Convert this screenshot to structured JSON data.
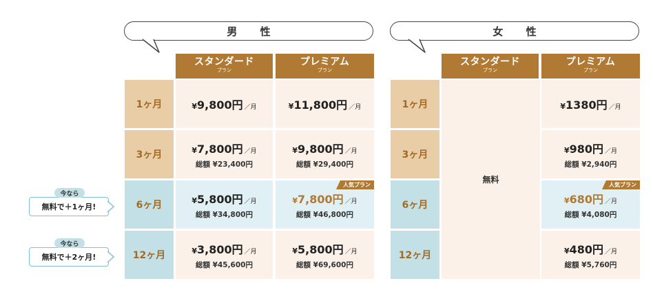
{
  "male": {
    "title": "男 性",
    "plans": [
      {
        "main": "スタンダード",
        "sub": "プラン"
      },
      {
        "main": "プレミアム",
        "sub": "プラン"
      }
    ],
    "rows": [
      {
        "duration": "1ヶ月",
        "std": {
          "yen": "¥",
          "amount": "9,800円",
          "unit": "／月",
          "total": ""
        },
        "prem": {
          "yen": "¥",
          "amount": "11,800円",
          "unit": "／月",
          "total": ""
        }
      },
      {
        "duration": "3ヶ月",
        "std": {
          "yen": "¥",
          "amount": "7,800円",
          "unit": "／月",
          "total": "総額 ¥23,400円"
        },
        "prem": {
          "yen": "¥",
          "amount": "9,800円",
          "unit": "／月",
          "total": "総額 ¥29,400円"
        }
      },
      {
        "duration": "6ヶ月",
        "std": {
          "yen": "¥",
          "amount": "5,800円",
          "unit": "／月",
          "total": "総額 ¥34,800円"
        },
        "prem": {
          "yen": "¥",
          "amount": "7,800円",
          "unit": "／月",
          "total": "総額 ¥46,800円",
          "badge": "人気プラン"
        }
      },
      {
        "duration": "12ヶ月",
        "std": {
          "yen": "¥",
          "amount": "3,800円",
          "unit": "／月",
          "total": "総額 ¥45,600円"
        },
        "prem": {
          "yen": "¥",
          "amount": "5,800円",
          "unit": "／月",
          "total": "総額 ¥69,600円"
        }
      }
    ]
  },
  "female": {
    "title": "女 性",
    "plans": [
      {
        "main": "スタンダード",
        "sub": "プラン"
      },
      {
        "main": "プレミアム",
        "sub": "プラン"
      }
    ],
    "durations": [
      "1ヶ月",
      "3ヶ月",
      "6ヶ月",
      "12ヶ月"
    ],
    "std_free": "無料",
    "prem": [
      {
        "yen": "¥",
        "amount": "1380円",
        "unit": "／月",
        "total": ""
      },
      {
        "yen": "¥",
        "amount": "980円",
        "unit": "／月",
        "total": "総額 ¥2,940円"
      },
      {
        "yen": "¥",
        "amount": "680円",
        "unit": "／月",
        "total": "総額 ¥4,080円",
        "badge": "人気プラン"
      },
      {
        "yen": "¥",
        "amount": "480円",
        "unit": "／月",
        "total": "総額 ¥5,760円"
      }
    ]
  },
  "promos": [
    {
      "tag": "今なら",
      "text": "無料で＋1ヶ月!"
    },
    {
      "tag": "今なら",
      "text": "無料で＋2ヶ月!"
    }
  ],
  "colors": {
    "brand": "#b07a34",
    "tan": "#e8cda6",
    "blue": "#c3e0e6",
    "cell": "#fbf1e8",
    "cell_blue": "#e1f0f4"
  }
}
